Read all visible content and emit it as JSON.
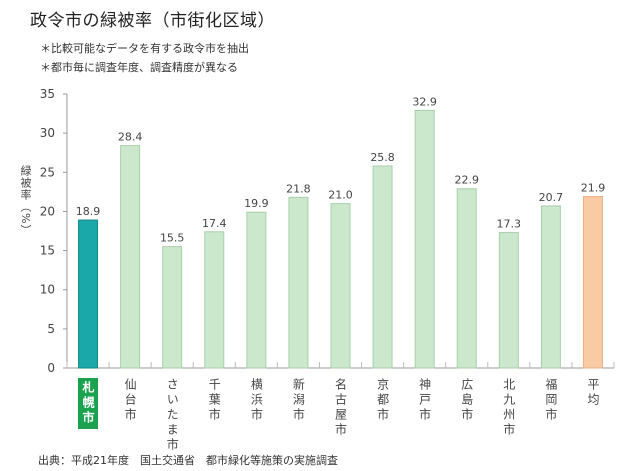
{
  "title": "政令市の緑被率（市街化区域）",
  "notes": [
    "＊比較可能なデータを有する政令市を抽出",
    "＊都市毎に調査年度、調査精度が異なる"
  ],
  "source": "出典：平成21年度　国土交通省　都市緑化等施策の実施調査",
  "colors": {
    "highlight": "#1aa8a8",
    "normal": "#cbe8cc",
    "average": "#f9cba4",
    "highlight_label_bg": "#1aa24e"
  },
  "chart_data": {
    "type": "bar",
    "title": "政令市の緑被率（市街化区域）",
    "xlabel": "",
    "ylabel": "緑被率（%）",
    "ylim": [
      0,
      35
    ],
    "yticks": [
      0,
      5,
      10,
      15,
      20,
      25,
      30,
      35
    ],
    "grid": false,
    "categories": [
      "札幌市",
      "仙台市",
      "さいたま市",
      "千葉市",
      "横浜市",
      "新潟市",
      "名古屋市",
      "京都市",
      "神戸市",
      "広島市",
      "北九州市",
      "福岡市",
      "平均"
    ],
    "values": [
      18.9,
      28.4,
      15.5,
      17.4,
      19.9,
      21.8,
      21.0,
      25.8,
      32.9,
      22.9,
      17.3,
      20.7,
      21.9
    ],
    "value_labels": [
      "18.9",
      "28.4",
      "15.5",
      "17.4",
      "19.9",
      "21.8",
      "21.0",
      "25.8",
      "32.9",
      "22.9",
      "17.3",
      "20.7",
      "21.9"
    ],
    "highlight": "札幌市",
    "average_category": "平均"
  }
}
